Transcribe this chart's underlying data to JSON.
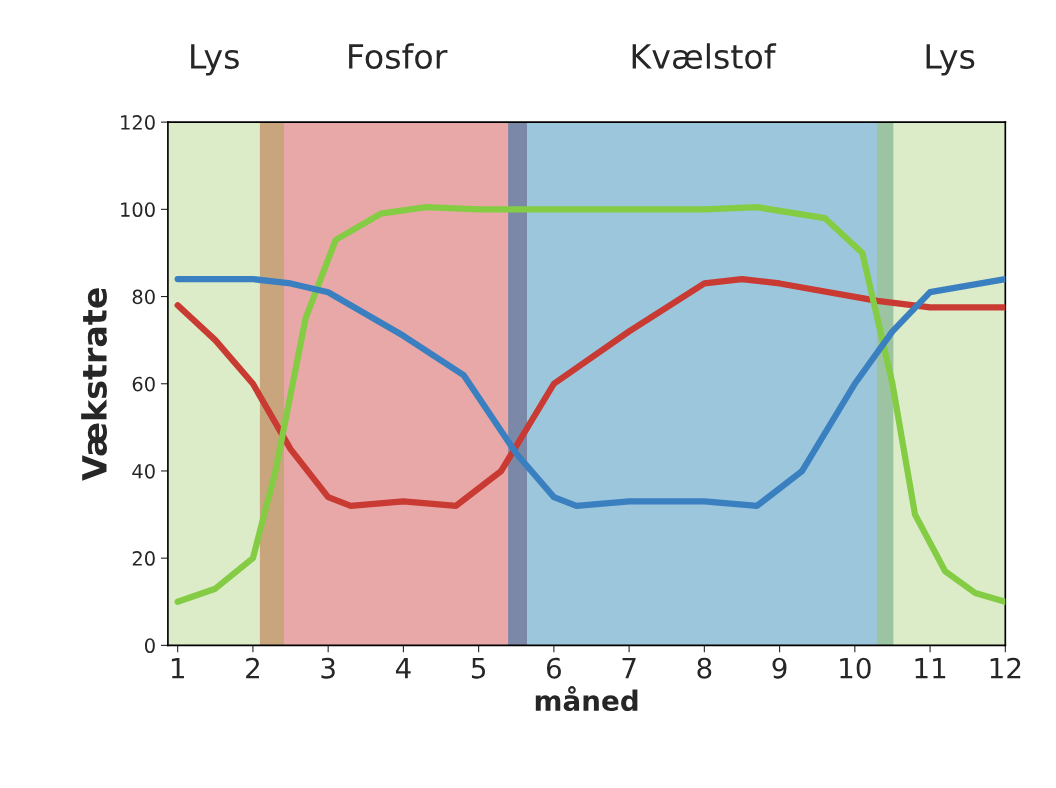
{
  "chart_data": {
    "type": "line",
    "xlabel": "måned",
    "ylabel": "Vækstrate",
    "xlim": [
      0.87,
      12
    ],
    "xticks": [
      1,
      2,
      3,
      4,
      5,
      6,
      7,
      8,
      9,
      10,
      11,
      12
    ],
    "ylim": [
      0,
      120
    ],
    "yticks": [
      0,
      20,
      40,
      60,
      80,
      100,
      120
    ],
    "series": [
      {
        "color": "#c83a32",
        "x": [
          1,
          1.5,
          2,
          2.5,
          3,
          3.3,
          4,
          4.7,
          5.3,
          6,
          7,
          8,
          8.5,
          9,
          10.3,
          11,
          12
        ],
        "values": [
          78,
          70,
          60,
          45,
          34,
          32,
          33,
          32,
          40,
          60,
          72,
          83,
          84,
          83,
          79,
          77.5,
          77.5
        ]
      },
      {
        "color": "#84cc44",
        "x": [
          1,
          1.5,
          2,
          2.3,
          2.7,
          3.1,
          3.7,
          4.3,
          5,
          6,
          8,
          8.7,
          9.6,
          10.1,
          10.5,
          10.8,
          11.2,
          11.6,
          12
        ],
        "values": [
          10,
          13,
          20,
          40,
          75,
          93,
          99,
          100.5,
          100,
          100,
          100,
          100.5,
          98,
          90,
          60,
          30,
          17,
          12,
          10
        ]
      },
      {
        "color": "#3a80c0",
        "x": [
          1,
          2,
          2.5,
          3,
          4,
          4.8,
          5.5,
          6,
          6.3,
          7,
          8,
          8.7,
          9.3,
          10,
          10.5,
          11,
          12
        ],
        "values": [
          84,
          84,
          83,
          81,
          71,
          62,
          44,
          34,
          32,
          33,
          33,
          32,
          40,
          60,
          72,
          81,
          84
        ]
      }
    ],
    "bands": [
      {
        "axis": "x",
        "from": 0.87,
        "to": 2.1,
        "label": "Lys",
        "color": "#dcecc8"
      },
      {
        "axis": "x",
        "from": 2.1,
        "to": 2.42,
        "color": "#c9a57e"
      },
      {
        "axis": "x",
        "from": 2.42,
        "to": 5.4,
        "label": "Fosfor",
        "color": "#e8a8a8"
      },
      {
        "axis": "x",
        "from": 5.4,
        "to": 5.65,
        "color": "#7c88a8"
      },
      {
        "axis": "x",
        "from": 5.65,
        "to": 10.3,
        "label": "Kvælstof",
        "color": "#9cc6dc"
      },
      {
        "axis": "x",
        "from": 10.3,
        "to": 10.52,
        "color": "#9cc4a2"
      },
      {
        "axis": "x",
        "from": 10.52,
        "to": 12,
        "label": "Lys",
        "color": "#dcecc8"
      }
    ]
  }
}
